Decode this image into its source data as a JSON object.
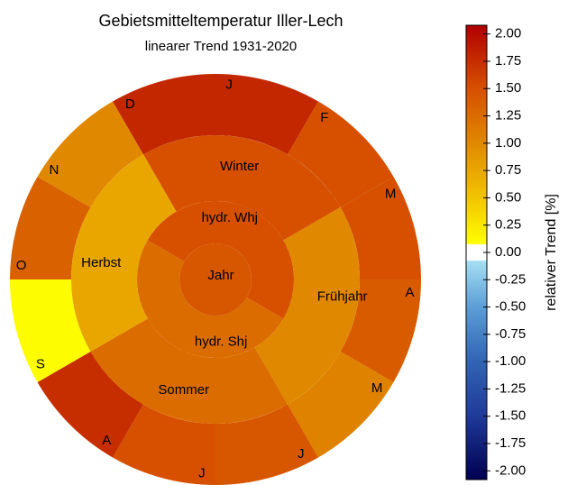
{
  "chart_data": {
    "type": "sunburst",
    "title": "Gebietsmitteltemperatur Iller-Lech",
    "subtitle": "linearer Trend 1931-2020",
    "months": {
      "labels": [
        "J",
        "F",
        "M",
        "A",
        "M",
        "J",
        "J",
        "A",
        "S",
        "O",
        "N",
        "D"
      ],
      "values": [
        1.8,
        1.5,
        1.5,
        1.4,
        1.05,
        1.45,
        1.5,
        1.75,
        0.1,
        1.35,
        1.0,
        1.8
      ]
    },
    "seasons": {
      "labels": [
        "Winter",
        "Frühjahr",
        "Sommer",
        "Herbst"
      ],
      "values": [
        1.5,
        1.0,
        1.25,
        0.75
      ]
    },
    "half_years": {
      "labels": [
        "hydr. Whj",
        "hydr. Shj"
      ],
      "values": [
        1.5,
        1.25
      ]
    },
    "year": {
      "label": "Jahr",
      "value": 1.45
    },
    "colorbar_label": "relativer Trend [%]",
    "colorbar_lim": [
      -2.08,
      2.08
    ],
    "colorbar_ticks": [
      {
        "value": 2,
        "label": "2.00"
      },
      {
        "value": 1.75,
        "label": "1.75"
      },
      {
        "value": 1.5,
        "label": "1.50"
      },
      {
        "value": 1.25,
        "label": "1.25"
      },
      {
        "value": 1,
        "label": "1.00"
      },
      {
        "value": 0.75,
        "label": "0.75"
      },
      {
        "value": 0.5,
        "label": "0.50"
      },
      {
        "value": 0.25,
        "label": "0.25"
      },
      {
        "value": 0,
        "label": "0.00"
      },
      {
        "value": -0.25,
        "label": "-0.25"
      },
      {
        "value": -0.5,
        "label": "-0.50"
      },
      {
        "value": -0.75,
        "label": "-0.75"
      },
      {
        "value": -1,
        "label": "-1.00"
      },
      {
        "value": -1.25,
        "label": "-1.25"
      },
      {
        "value": -1.5,
        "label": "-1.50"
      },
      {
        "value": -1.75,
        "label": "-1.75"
      },
      {
        "value": -2,
        "label": "-2.00"
      }
    ],
    "colorscale": [
      [
        -2.08,
        "#000050"
      ],
      [
        -1.5,
        "#1f3a99"
      ],
      [
        -1,
        "#3264b4"
      ],
      [
        -0.5,
        "#5b9ed6"
      ],
      [
        -0.08,
        "#a6def2"
      ],
      [
        -0.07,
        "#ffffff"
      ],
      [
        0.07,
        "#ffffff"
      ],
      [
        0.08,
        "#ffff00"
      ],
      [
        0.5,
        "#f2c400"
      ],
      [
        1,
        "#e08800"
      ],
      [
        1.5,
        "#d65000"
      ],
      [
        2.08,
        "#b00000"
      ]
    ]
  }
}
